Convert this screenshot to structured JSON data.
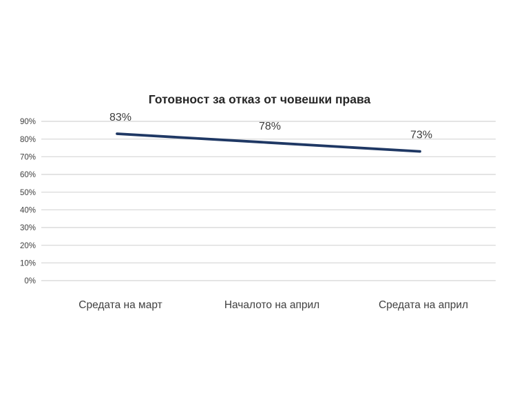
{
  "chart_data": {
    "type": "line",
    "title": "Готовност за отказ от човешки права",
    "categories": [
      "Средата на март",
      "Началото на април",
      "Средата на април"
    ],
    "values": [
      83,
      78,
      73
    ],
    "data_labels": [
      "83%",
      "78%",
      "73%"
    ],
    "ylim": [
      0,
      90
    ],
    "ytick_step": 10,
    "ytick_labels": [
      "0%",
      "10%",
      "20%",
      "30%",
      "40%",
      "50%",
      "60%",
      "70%",
      "80%",
      "90%"
    ],
    "xlabel": "",
    "ylabel": "",
    "grid": "horizontal",
    "legend": "none"
  },
  "colors": {
    "line": "#1F3864",
    "gridline": "#DCDCDC",
    "axis_text": "#404040",
    "data_label_text": "#3b3b3b",
    "title_text": "#262626",
    "background": "#FFFFFF"
  }
}
